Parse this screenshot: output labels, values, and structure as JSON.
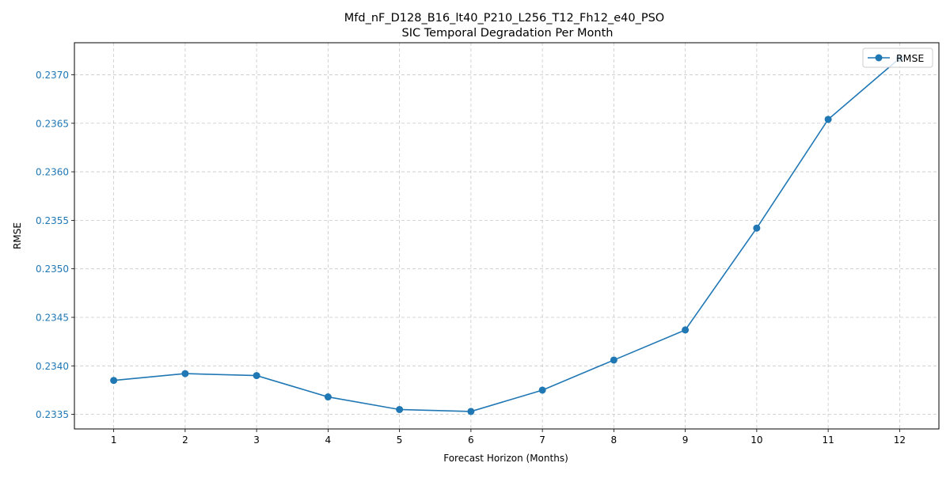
{
  "chart_data": {
    "type": "line",
    "title": "Mfd_nF_D128_B16_lt40_P210_L256_T12_Fh12_e40_PSO",
    "subtitle": "SIC Temporal Degradation Per Month",
    "xlabel": "Forecast Horizon (Months)",
    "ylabel": "RMSE",
    "x": [
      1,
      2,
      3,
      4,
      5,
      6,
      7,
      8,
      9,
      10,
      11,
      12
    ],
    "x_ticks": [
      "1",
      "2",
      "3",
      "4",
      "5",
      "6",
      "7",
      "8",
      "9",
      "10",
      "11",
      "12"
    ],
    "y_ticks": [
      "0.2335",
      "0.2340",
      "0.2345",
      "0.2350",
      "0.2355",
      "0.2360",
      "0.2365",
      "0.2370"
    ],
    "xlim": [
      0.45,
      12.55
    ],
    "ylim": [
      0.23335,
      0.23733
    ],
    "grid": true,
    "legend_position": "top-right",
    "series": [
      {
        "name": "RMSE",
        "color": "#1f77b4",
        "marker": "circle",
        "values": [
          0.23385,
          0.23392,
          0.2339,
          0.23368,
          0.23355,
          0.23353,
          0.23375,
          0.23406,
          0.23437,
          0.23542,
          0.23654,
          0.23717
        ]
      }
    ],
    "tick_label_color": "#1f77b4"
  }
}
